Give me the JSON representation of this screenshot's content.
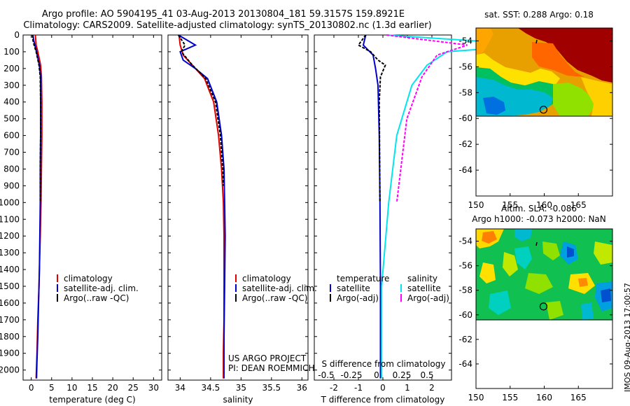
{
  "header": {
    "title_line1": "Argo profile: AO 5904195_41 03-Aug-2013 20130804_181 59.3157S 159.8921E",
    "title_line2": "Climatology: CARS2009. Satellite-adjusted climatology: synTS_20130802.nc (1.3d earlier)"
  },
  "colors": {
    "climatology": "#e00000",
    "satellite": "#0000cc",
    "argo": "#000000",
    "salinity_sat": "#00e5ee",
    "salinity_argo": "#ff00ff"
  },
  "depth_axis": {
    "ticks": [
      0,
      100,
      200,
      300,
      400,
      500,
      600,
      700,
      800,
      900,
      1000,
      1100,
      1200,
      1300,
      1400,
      1500,
      1600,
      1700,
      1800,
      1900,
      2000
    ],
    "range": [
      0,
      2060
    ]
  },
  "panels": {
    "temperature": {
      "xlabel": "temperature (deg C)",
      "xticks": [
        0,
        5,
        10,
        15,
        20,
        25,
        30
      ],
      "xlim": [
        -2,
        32
      ],
      "legend": [
        "climatology",
        "satellite-adj. clim.",
        "Argo(..raw -QC)"
      ]
    },
    "salinity": {
      "xlabel": "salinity",
      "xticks": [
        "34",
        "34.5",
        "35",
        "35.5",
        "36"
      ],
      "xtick_values": [
        34,
        34.5,
        35,
        35.5,
        36
      ],
      "xlim": [
        33.8,
        36.1
      ],
      "legend": [
        "climatology",
        "satellite-adj. clim.",
        "Argo(..raw -QC)"
      ],
      "project_line1": "US ARGO PROJECT",
      "project_line2": "PI: DEAN ROEMMICH"
    },
    "difference": {
      "xlabel": "T difference from climatology",
      "xticks": [
        "-2",
        "-1",
        "0",
        "1",
        "2"
      ],
      "xtick_values": [
        -2,
        -1,
        0,
        1,
        2
      ],
      "xlim": [
        -2.8,
        2.8
      ],
      "s_label": "S difference from climatology",
      "s_ticks": [
        "-0.5",
        "-0.25",
        "0",
        "0.25",
        "0.5"
      ],
      "s_tick_values": [
        -0.5,
        -0.25,
        0,
        0.25,
        0.5
      ],
      "legend_t_title": "temperature",
      "legend_s_title": "salinity",
      "legend_t": [
        "satellite",
        "Argo(-adj)"
      ],
      "legend_s": [
        "satellite",
        "Argo(-adj)"
      ]
    }
  },
  "maps": {
    "sst": {
      "title": "sat. SST: 0.288 Argo: 0.18"
    },
    "sla": {
      "title_line1": "Altim. SLA: -0.086",
      "title_line2": "Argo h1000: -0.073 h2000: NaN"
    },
    "lon_ticks": [
      "150",
      "155",
      "160",
      "165"
    ],
    "lon_values": [
      150,
      155,
      160,
      165
    ],
    "lon_range": [
      150,
      170
    ],
    "lat_ticks": [
      "-54",
      "-56",
      "-58",
      "-60",
      "-62",
      "-64"
    ],
    "lat_values": [
      -54,
      -56,
      -58,
      -60,
      -62,
      -64
    ],
    "lat_range": [
      -53,
      -66
    ],
    "float_lon": 159.89,
    "float_lat": -59.32
  },
  "stamp": "IMOS 09-Aug-2013 17:00:57",
  "chart_data": [
    {
      "type": "line",
      "title": "",
      "xlabel": "temperature (deg C)",
      "ylabel": "",
      "xlim": [
        -2,
        32
      ],
      "ylim": [
        2060,
        0
      ],
      "series": [
        {
          "name": "climatology",
          "x": [
            1.0,
            1.1,
            1.2,
            1.6,
            2.3,
            2.5,
            2.6,
            2.6,
            2.5,
            2.4,
            2.3,
            2.2,
            2.1,
            1.9,
            1.6,
            1.4,
            1.2
          ],
          "y": [
            0,
            30,
            60,
            100,
            180,
            250,
            400,
            600,
            800,
            1000,
            1100,
            1200,
            1300,
            1500,
            1700,
            1900,
            2050
          ]
        },
        {
          "name": "satellite-adj. clim.",
          "x": [
            0.4,
            0.6,
            0.9,
            1.3,
            2.0,
            2.3,
            2.3,
            2.3,
            2.2,
            2.2,
            2.1,
            2.0,
            1.8,
            1.6,
            1.4,
            1.3
          ],
          "y": [
            0,
            30,
            60,
            100,
            180,
            250,
            400,
            600,
            800,
            1000,
            1200,
            1400,
            1600,
            1800,
            1950,
            2050
          ]
        },
        {
          "name": "Argo(..raw -QC)",
          "x": [
            0.3,
            0.4,
            0.7,
            1.2,
            1.9,
            2.2,
            2.3,
            2.3,
            2.2,
            2.2
          ],
          "y": [
            0,
            30,
            60,
            100,
            180,
            250,
            400,
            600,
            800,
            1000
          ]
        }
      ]
    },
    {
      "type": "line",
      "title": "",
      "xlabel": "salinity",
      "ylabel": "",
      "xlim": [
        33.8,
        36.1
      ],
      "ylim": [
        2060,
        0
      ],
      "series": [
        {
          "name": "climatology",
          "x": [
            33.98,
            34.0,
            34.05,
            34.2,
            34.4,
            34.55,
            34.63,
            34.68,
            34.71,
            34.72,
            34.72,
            34.72,
            34.71,
            34.71
          ],
          "y": [
            0,
            60,
            120,
            180,
            260,
            400,
            600,
            800,
            1000,
            1200,
            1500,
            1700,
            1900,
            2050
          ]
        },
        {
          "name": "satellite-adj. clim.",
          "x": [
            33.97,
            34.25,
            34.0,
            34.05,
            34.25,
            34.45,
            34.6,
            34.68,
            34.72,
            34.73,
            34.74,
            34.73,
            34.72,
            34.72
          ],
          "y": [
            0,
            60,
            100,
            150,
            200,
            260,
            400,
            600,
            800,
            1000,
            1200,
            1500,
            1800,
            2050
          ]
        },
        {
          "name": "Argo(..raw -QC)",
          "x": [
            33.97,
            34.08,
            34.02,
            34.2,
            34.42,
            34.58,
            34.66,
            34.7,
            34.71
          ],
          "y": [
            0,
            60,
            100,
            180,
            260,
            400,
            600,
            800,
            900
          ]
        }
      ]
    },
    {
      "type": "line",
      "title": "",
      "xlabel": "T difference from climatology",
      "ylabel": "",
      "xlim": [
        -2.8,
        2.8
      ],
      "ylim": [
        2060,
        0
      ],
      "series": [
        {
          "name": "temperature satellite",
          "x": [
            -0.7,
            -0.8,
            -0.4,
            -0.3,
            -0.2,
            -0.15,
            -0.12,
            -0.1,
            -0.1
          ],
          "y": [
            0,
            60,
            120,
            200,
            300,
            600,
            1000,
            1500,
            2050
          ]
        },
        {
          "name": "temperature Argo(-adj)",
          "x": [
            -0.7,
            -1.0,
            -0.5,
            -0.2,
            0.1,
            -0.1,
            -0.15,
            -0.12
          ],
          "y": [
            0,
            60,
            100,
            150,
            180,
            250,
            400,
            1000
          ]
        },
        {
          "name": "salinity satellite",
          "x": [
            0.1,
            1.6,
            0.7,
            0.5,
            0.35,
            0.2,
            0.12,
            0.05,
            0.05
          ],
          "y": [
            0,
            60,
            100,
            180,
            300,
            600,
            1000,
            1500,
            2050
          ]
        },
        {
          "name": "salinity Argo(-adj)",
          "x": [
            0.1,
            0.9,
            0.6,
            0.45,
            0.3,
            0.2
          ],
          "y": [
            0,
            60,
            120,
            250,
            500,
            1000
          ]
        }
      ]
    }
  ]
}
